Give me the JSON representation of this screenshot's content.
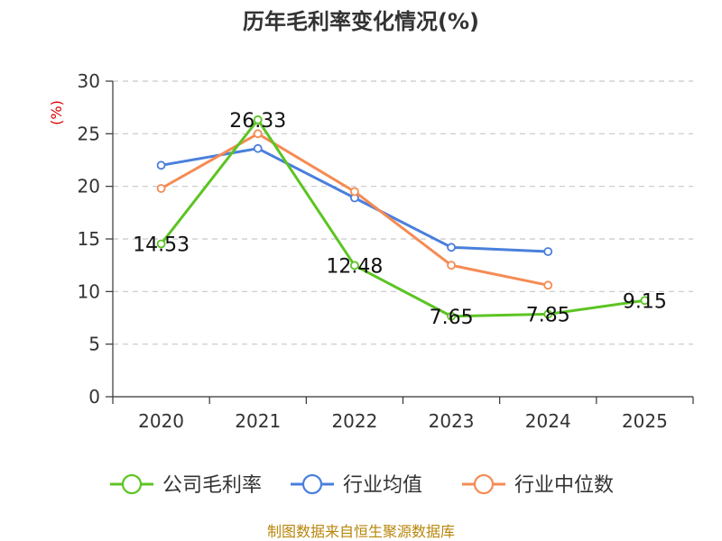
{
  "chart_data": {
    "type": "line",
    "title": "历年毛利率变化情况(%)",
    "xlabel": "",
    "ylabel": "(%)",
    "categories": [
      "2020",
      "2021",
      "2022",
      "2023",
      "2024",
      "2025"
    ],
    "ylim": [
      0,
      30
    ],
    "yticks": [
      0,
      5,
      10,
      15,
      20,
      25,
      30
    ],
    "grid": true,
    "legend_position": "bottom",
    "series": [
      {
        "name": "公司毛利率",
        "values": [
          14.53,
          26.33,
          12.48,
          7.65,
          7.85,
          9.15
        ],
        "color": "#5cc423",
        "labels": [
          "14.53",
          "26.33",
          "12.48",
          "7.65",
          "7.85",
          "9.15"
        ]
      },
      {
        "name": "行业均值",
        "values": [
          22.0,
          23.6,
          18.9,
          14.2,
          13.8,
          null
        ],
        "color": "#4a7fdc"
      },
      {
        "name": "行业中位数",
        "values": [
          19.8,
          25.0,
          19.5,
          12.5,
          10.6,
          null
        ],
        "color": "#f58b54"
      }
    ]
  },
  "source_note": "制图数据来自恒生聚源数据库"
}
